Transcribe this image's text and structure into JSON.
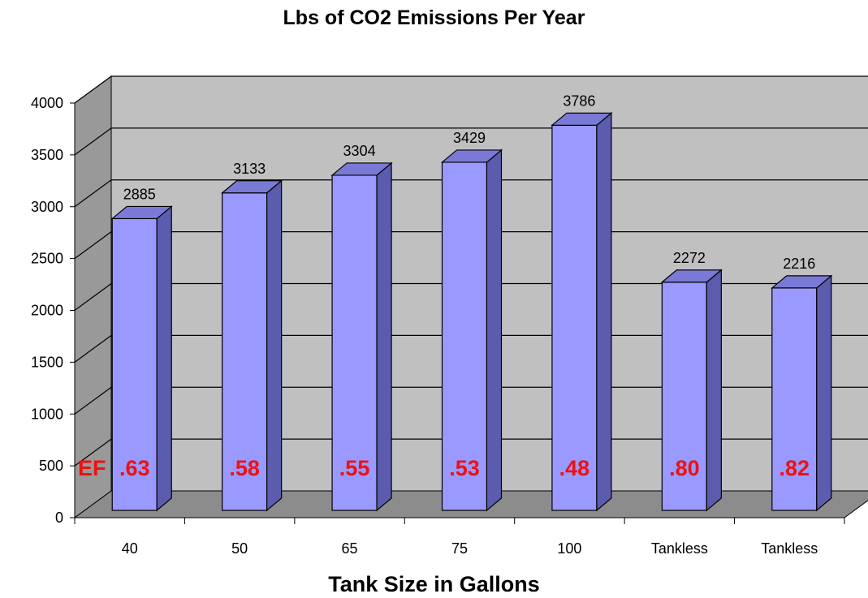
{
  "chart_data": {
    "type": "bar",
    "title": "Lbs of CO2 Emissions Per Year",
    "xlabel": "Tank Size in Gallons",
    "ylabel": "",
    "categories": [
      "40",
      "50",
      "65",
      "75",
      "100",
      "Tankless",
      "Tankless"
    ],
    "values": [
      2885,
      3133,
      3304,
      3429,
      3786,
      2272,
      2216
    ],
    "data_labels": [
      "2885",
      "3133",
      "3304",
      "3429",
      "3786",
      "2272",
      "2216"
    ],
    "ylim": [
      0,
      4000
    ],
    "yticks": [
      "0",
      "500",
      "1000",
      "1500",
      "2000",
      "2500",
      "3000",
      "3500",
      "4000"
    ],
    "grid": true,
    "legend": "none",
    "annotations": {
      "prefix": "EF",
      "values": [
        ".63",
        ".58",
        ".55",
        ".53",
        ".48",
        ".80",
        ".82"
      ],
      "color": "#ee1111"
    },
    "colors": {
      "bar_front": "#9999ff",
      "bar_side": "#5c5cae",
      "bar_top": "#7a7ad6",
      "back_wall": "#c0c0c0",
      "side_wall": "#999999",
      "floor": "#8c8c8c"
    }
  }
}
